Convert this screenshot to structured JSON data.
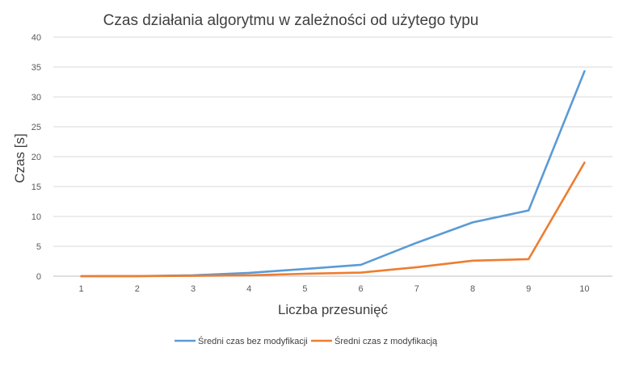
{
  "chart_data": {
    "type": "line",
    "title": "Czas działania algorytmu w zależności od użytego typu",
    "xlabel": "Liczba przesunięć",
    "ylabel": "Czas [s]",
    "categories": [
      "1",
      "2",
      "3",
      "4",
      "5",
      "6",
      "7",
      "8",
      "9",
      "10"
    ],
    "ylim": [
      0,
      40
    ],
    "yticks": [
      "0",
      "5",
      "10",
      "15",
      "20",
      "25",
      "30",
      "35",
      "40"
    ],
    "grid": true,
    "legend_position": "bottom",
    "series": [
      {
        "name": "Średni czas bez modyfikacji",
        "color": "#5B9BD5",
        "values": [
          0.0,
          0.02,
          0.15,
          0.55,
          1.2,
          1.9,
          5.6,
          9.0,
          11.0,
          34.3
        ]
      },
      {
        "name": "Średni czas z modyfikacją",
        "color": "#ED7D31",
        "values": [
          0.0,
          0.01,
          0.05,
          0.15,
          0.4,
          0.6,
          1.5,
          2.6,
          2.85,
          19.0
        ]
      }
    ]
  }
}
